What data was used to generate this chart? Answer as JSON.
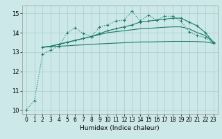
{
  "title": "",
  "xlabel": "Humidex (Indice chaleur)",
  "bg_color": "#cce8e8",
  "grid_color": "#aacccc",
  "line_color": "#1a7a6a",
  "xlim": [
    -0.5,
    23.5
  ],
  "ylim": [
    9.8,
    15.4
  ],
  "xticks": [
    0,
    1,
    2,
    3,
    4,
    5,
    6,
    7,
    8,
    9,
    10,
    11,
    12,
    13,
    14,
    15,
    16,
    17,
    18,
    19,
    20,
    21,
    22,
    23
  ],
  "yticks": [
    10,
    11,
    12,
    13,
    14,
    15
  ],
  "line1_x": [
    0,
    1,
    2,
    3,
    4,
    5,
    6,
    7,
    8,
    9,
    10,
    11,
    12,
    13,
    14,
    15,
    16,
    17,
    18,
    19,
    20,
    21,
    22,
    23
  ],
  "line1_y": [
    10.0,
    10.5,
    12.9,
    13.1,
    13.3,
    14.0,
    14.25,
    13.95,
    13.8,
    14.3,
    14.4,
    14.6,
    14.65,
    15.1,
    14.6,
    14.9,
    14.65,
    14.85,
    14.85,
    14.6,
    14.05,
    13.85,
    13.75,
    13.45
  ],
  "line2_x": [
    2,
    3,
    4,
    5,
    6,
    7,
    8,
    9,
    10,
    11,
    12,
    13,
    14,
    15,
    16,
    17,
    18,
    19,
    20,
    21,
    22,
    23
  ],
  "line2_y": [
    13.25,
    13.27,
    13.3,
    13.32,
    13.35,
    13.37,
    13.4,
    13.42,
    13.44,
    13.46,
    13.48,
    13.5,
    13.52,
    13.52,
    13.53,
    13.54,
    13.55,
    13.55,
    13.55,
    13.54,
    13.52,
    13.45
  ],
  "line3_x": [
    2,
    3,
    4,
    5,
    6,
    7,
    8,
    9,
    10,
    11,
    12,
    13,
    14,
    15,
    16,
    17,
    18,
    19,
    20,
    21,
    22,
    23
  ],
  "line3_y": [
    13.25,
    13.3,
    13.4,
    13.5,
    13.6,
    13.7,
    13.8,
    13.9,
    14.0,
    14.05,
    14.1,
    14.15,
    14.2,
    14.22,
    14.25,
    14.28,
    14.3,
    14.3,
    14.2,
    14.0,
    13.85,
    13.5
  ],
  "line4_x": [
    2,
    3,
    4,
    5,
    6,
    7,
    8,
    9,
    10,
    11,
    12,
    13,
    14,
    15,
    16,
    17,
    18,
    19,
    20,
    21,
    22,
    23
  ],
  "line4_y": [
    13.25,
    13.3,
    13.4,
    13.5,
    13.6,
    13.7,
    13.8,
    13.95,
    14.1,
    14.2,
    14.3,
    14.4,
    14.55,
    14.6,
    14.65,
    14.7,
    14.75,
    14.75,
    14.55,
    14.35,
    14.0,
    13.5
  ]
}
